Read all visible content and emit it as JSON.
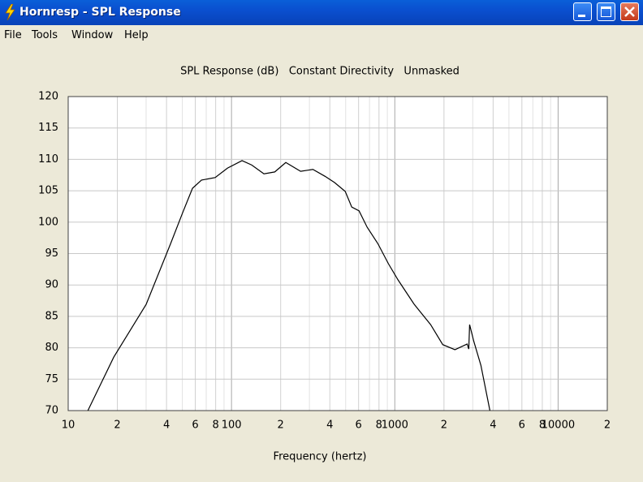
{
  "window": {
    "title": "Hornresp - SPL Response"
  },
  "menu": [
    "File",
    "Tools",
    "Window",
    "Help"
  ],
  "chart_data": {
    "type": "line",
    "title": "SPL Response (dB)   Constant Directivity   Unmasked",
    "x_label": "Frequency (hertz)",
    "x_scale": "log",
    "grid": true,
    "xlim": [
      10,
      20000
    ],
    "ylim": [
      70,
      120
    ],
    "xticks": [
      10,
      {
        "value": 20,
        "label": "2"
      },
      {
        "value": 40,
        "label": "4"
      },
      {
        "value": 60,
        "label": "6"
      },
      {
        "value": 80,
        "label": "8"
      },
      100,
      {
        "value": 200,
        "label": "2"
      },
      {
        "value": 400,
        "label": "4"
      },
      {
        "value": 600,
        "label": "6"
      },
      {
        "value": 800,
        "label": "8"
      },
      1000,
      {
        "value": 2000,
        "label": "2"
      },
      {
        "value": 4000,
        "label": "4"
      },
      {
        "value": 6000,
        "label": "6"
      },
      {
        "value": 8000,
        "label": "8"
      },
      10000,
      {
        "value": 20000,
        "label": "2"
      }
    ],
    "minor_xticks": [
      30,
      50,
      70,
      90,
      300,
      500,
      700,
      900,
      3000,
      5000,
      7000,
      9000
    ],
    "yticks": [
      70,
      75,
      80,
      85,
      90,
      95,
      100,
      105,
      110,
      115,
      120
    ],
    "x": [
      13.2,
      19,
      30,
      42.4,
      50.2,
      57.7,
      65.5,
      79.4,
      94.4,
      116,
      133,
      158,
      184,
      215,
      265,
      315,
      374,
      428,
      497,
      545,
      604,
      677,
      787,
      913,
      1047,
      1316,
      1656,
      1966,
      2335,
      2773,
      2838,
      2871,
      3040,
      3367,
      3822
    ],
    "series": [
      {
        "color": "#000000",
        "values": [
          70,
          78.5,
          86.9,
          96.6,
          101.5,
          105.4,
          106.7,
          107.1,
          108.6,
          109.8,
          109.1,
          107.7,
          108,
          109.5,
          108.1,
          108.4,
          107.3,
          106.3,
          104.9,
          102.4,
          101.8,
          99.2,
          96.6,
          93.4,
          90.8,
          86.9,
          83.7,
          80.5,
          79.7,
          80.6,
          79.8,
          83.7,
          81.1,
          77.2,
          70
        ]
      }
    ]
  }
}
